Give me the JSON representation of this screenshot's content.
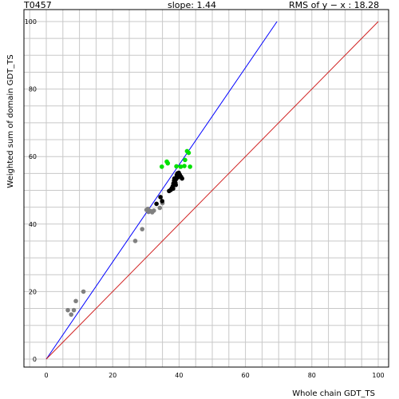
{
  "header": {
    "target_id": "T0457",
    "slope": "slope: 1.44",
    "rms": "RMS of  y − x : 18.28"
  },
  "colors": {
    "grid": "#c8c8c8",
    "fit_line": "#0000ff",
    "diagonal_line": "#d02020",
    "series_gray": "#808080",
    "series_black": "#000000",
    "series_green": "#00e000"
  },
  "chart_data": {
    "type": "scatter",
    "xlabel": "Whole chain GDT_TS",
    "ylabel": "Weighted sum of domain GDT_TS",
    "xlim": [
      0,
      100
    ],
    "ylim": [
      0,
      100
    ],
    "xticks": [
      0,
      20,
      40,
      60,
      80,
      100
    ],
    "yticks": [
      0,
      20,
      40,
      60,
      80,
      100
    ],
    "grid": true,
    "lines": [
      {
        "role": "fit",
        "color": "#0000ff",
        "x": [
          0,
          69.5
        ],
        "y": [
          0,
          100
        ]
      },
      {
        "role": "y=x",
        "color": "#d02020",
        "x": [
          0,
          100
        ],
        "y": [
          0,
          100
        ]
      }
    ],
    "series": [
      {
        "color": "#808080",
        "points": [
          [
            6.5,
            14.5
          ],
          [
            7.5,
            13.2
          ],
          [
            8.3,
            14.5
          ],
          [
            8.9,
            17.2
          ],
          [
            11.2,
            20.0
          ],
          [
            26.8,
            35.0
          ],
          [
            28.9,
            38.5
          ],
          [
            30.2,
            44.2
          ],
          [
            30.8,
            43.6
          ],
          [
            31.3,
            43.9
          ],
          [
            31.9,
            43.5
          ],
          [
            32.4,
            44.0
          ],
          [
            34.2,
            44.8
          ],
          [
            35.0,
            46.2
          ],
          [
            30.6,
            44.5
          ]
        ]
      },
      {
        "color": "#000000",
        "points": [
          [
            33.2,
            46.0
          ],
          [
            34.4,
            48.0
          ],
          [
            34.9,
            46.8
          ],
          [
            37.0,
            49.8
          ],
          [
            37.5,
            50.1
          ],
          [
            37.8,
            50.6
          ],
          [
            38.1,
            51.2
          ],
          [
            38.3,
            52.0
          ],
          [
            38.5,
            52.8
          ],
          [
            38.6,
            53.5
          ],
          [
            38.9,
            52.2
          ],
          [
            39.1,
            53.3
          ],
          [
            39.3,
            54.5
          ],
          [
            39.5,
            55.0
          ],
          [
            39.7,
            53.9
          ],
          [
            39.9,
            55.2
          ],
          [
            40.2,
            54.6
          ],
          [
            40.6,
            54.0
          ],
          [
            40.9,
            53.5
          ],
          [
            38.2,
            50.5
          ],
          [
            39.0,
            51.6
          ]
        ]
      },
      {
        "color": "#00e000",
        "points": [
          [
            34.8,
            57.0
          ],
          [
            36.3,
            58.5
          ],
          [
            36.6,
            58.0
          ],
          [
            39.2,
            57.1
          ],
          [
            40.5,
            57.0
          ],
          [
            41.6,
            57.2
          ],
          [
            41.8,
            59.0
          ],
          [
            42.4,
            61.6
          ],
          [
            42.9,
            61.1
          ],
          [
            43.3,
            57.0
          ]
        ]
      }
    ]
  }
}
